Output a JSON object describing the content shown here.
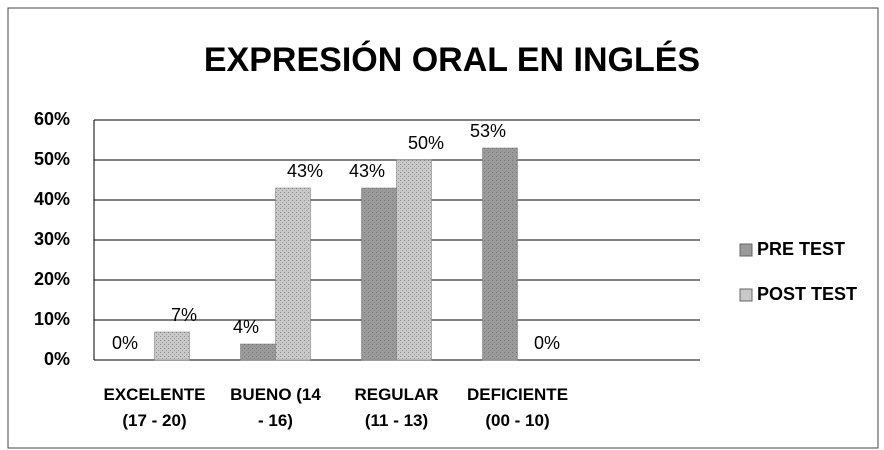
{
  "chart_data": {
    "type": "bar",
    "title": "EXPRESIÓN ORAL EN INGLÉS",
    "categories": [
      "EXCELENTE\n(17 - 20)",
      "BUENO (14\n- 16)",
      "REGULAR\n(11 - 13)",
      "DEFICIENTE\n(00 - 10)"
    ],
    "series": [
      {
        "name": "PRE TEST",
        "color": "#9a9a9a",
        "values": [
          0,
          4,
          43,
          53
        ],
        "value_labels": [
          "0%",
          "4%",
          "43%",
          "53%"
        ]
      },
      {
        "name": "POST TEST",
        "color": "#c8c8c8",
        "values": [
          7,
          43,
          50,
          0
        ],
        "value_labels": [
          "7%",
          "43%",
          "50%",
          "0%"
        ]
      }
    ],
    "ylim": [
      0,
      60
    ],
    "yticks": [
      {
        "value": 0,
        "label": "0%"
      },
      {
        "value": 10,
        "label": "10%"
      },
      {
        "value": 20,
        "label": "20%"
      },
      {
        "value": 30,
        "label": "30%"
      },
      {
        "value": 40,
        "label": "40%"
      },
      {
        "value": 50,
        "label": "50%"
      },
      {
        "value": 60,
        "label": "60%"
      }
    ],
    "grid": true,
    "legend": "right"
  }
}
